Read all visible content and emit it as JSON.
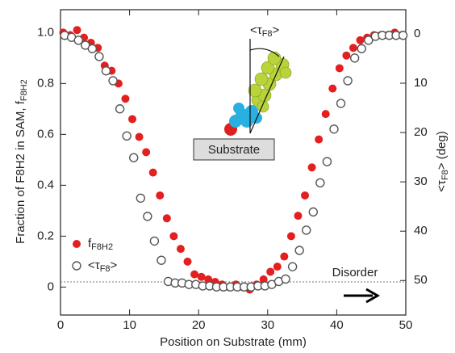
{
  "chart_data": {
    "type": "scatter",
    "xlabel": "Position on Substrate (mm)",
    "ylabel": {
      "text": "Fraction of F8H2 in SAM, f",
      "subscript": "F8H2"
    },
    "y2label": {
      "text": "<τ",
      "subscript": "F8",
      "suffix": "> (deg)"
    },
    "xlim": [
      0,
      50
    ],
    "xticks": [
      0,
      10,
      20,
      30,
      40,
      50
    ],
    "ylim": [
      -0.11,
      1.09
    ],
    "yticks": [
      0,
      0.2,
      0.4,
      0.6,
      0.8,
      {
        "value": 1,
        "label": "1.0"
      }
    ],
    "y2lim": [
      57,
      -4.9
    ],
    "y2ticks": [
      0,
      10,
      20,
      30,
      40,
      50
    ],
    "reference_line": 0.02,
    "annotations": {
      "angle": {
        "text": "<τ",
        "subscript": "F8",
        "suffix": ">"
      },
      "substrate": "Substrate",
      "disorder": "Disorder"
    },
    "series": [
      {
        "name": {
          "text": "f",
          "subscript": "F8H2"
        },
        "color": "#e41f1f",
        "marker": "filled",
        "x": [
          0.4,
          1.4,
          2.4,
          3.4,
          4.4,
          5.4,
          6.4,
          7.4,
          8.4,
          9.4,
          10.4,
          11.4,
          12.4,
          13.4,
          14.4,
          15.4,
          16.4,
          17.4,
          18.4,
          19.4,
          20.4,
          21.4,
          22.4,
          23.4,
          24.4,
          25.4,
          26.4,
          27.4,
          28.4,
          29.4,
          30.4,
          31.4,
          32.4,
          33.4,
          34.4,
          35.4,
          36.4,
          37.4,
          38.4,
          39.4,
          40.4,
          41.4,
          42.4,
          43.4,
          44.4,
          45.4,
          46.4,
          47.4,
          48.4,
          49.4
        ],
        "values": [
          1.0,
          0.99,
          1.01,
          0.98,
          0.96,
          0.94,
          0.87,
          0.85,
          0.8,
          0.74,
          0.66,
          0.59,
          0.53,
          0.45,
          0.36,
          0.27,
          0.2,
          0.15,
          0.1,
          0.05,
          0.04,
          0.03,
          0.02,
          0.01,
          0.0,
          0.01,
          0.0,
          -0.01,
          0.01,
          0.03,
          0.06,
          0.08,
          0.12,
          0.2,
          0.28,
          0.36,
          0.47,
          0.58,
          0.68,
          0.78,
          0.86,
          0.91,
          0.94,
          0.97,
          0.98,
          0.99,
          0.99,
          0.99,
          1.0,
          0.99
        ]
      },
      {
        "name": {
          "text": "<τ",
          "subscript": "F8",
          "suffix": ">"
        },
        "color": "#555555",
        "marker": "open",
        "axis": "y2",
        "x": [
          0.6,
          1.6,
          2.6,
          3.6,
          4.6,
          5.6,
          6.6,
          7.6,
          8.6,
          9.6,
          10.6,
          11.6,
          12.6,
          13.6,
          14.6,
          15.6,
          16.6,
          17.6,
          18.6,
          19.6,
          20.6,
          21.6,
          22.6,
          23.6,
          24.6,
          25.6,
          26.6,
          27.6,
          28.6,
          29.6,
          30.6,
          31.6,
          32.6,
          33.6,
          34.6,
          35.6,
          36.6,
          37.6,
          38.6,
          39.6,
          40.6,
          41.6,
          42.6,
          43.6,
          44.6,
          45.6,
          46.6,
          47.6,
          48.6,
          49.6
        ],
        "values": [
          0.3,
          0.7,
          1.3,
          2.3,
          3.0,
          4.6,
          7.5,
          9.5,
          15.2,
          20.7,
          25.1,
          33.3,
          37.0,
          42.0,
          45.9,
          50.2,
          50.5,
          50.5,
          50.8,
          50.8,
          51.1,
          51.1,
          51.3,
          51.3,
          51.3,
          51.3,
          51.3,
          51.3,
          51.1,
          51.1,
          50.8,
          50.2,
          49.7,
          47.2,
          43.9,
          39.8,
          36.1,
          30.2,
          25.9,
          19.3,
          14.1,
          9.5,
          4.9,
          3.0,
          1.3,
          0.5,
          0.3,
          0.3,
          0.3,
          0.3
        ]
      }
    ],
    "legend": "lower left"
  }
}
